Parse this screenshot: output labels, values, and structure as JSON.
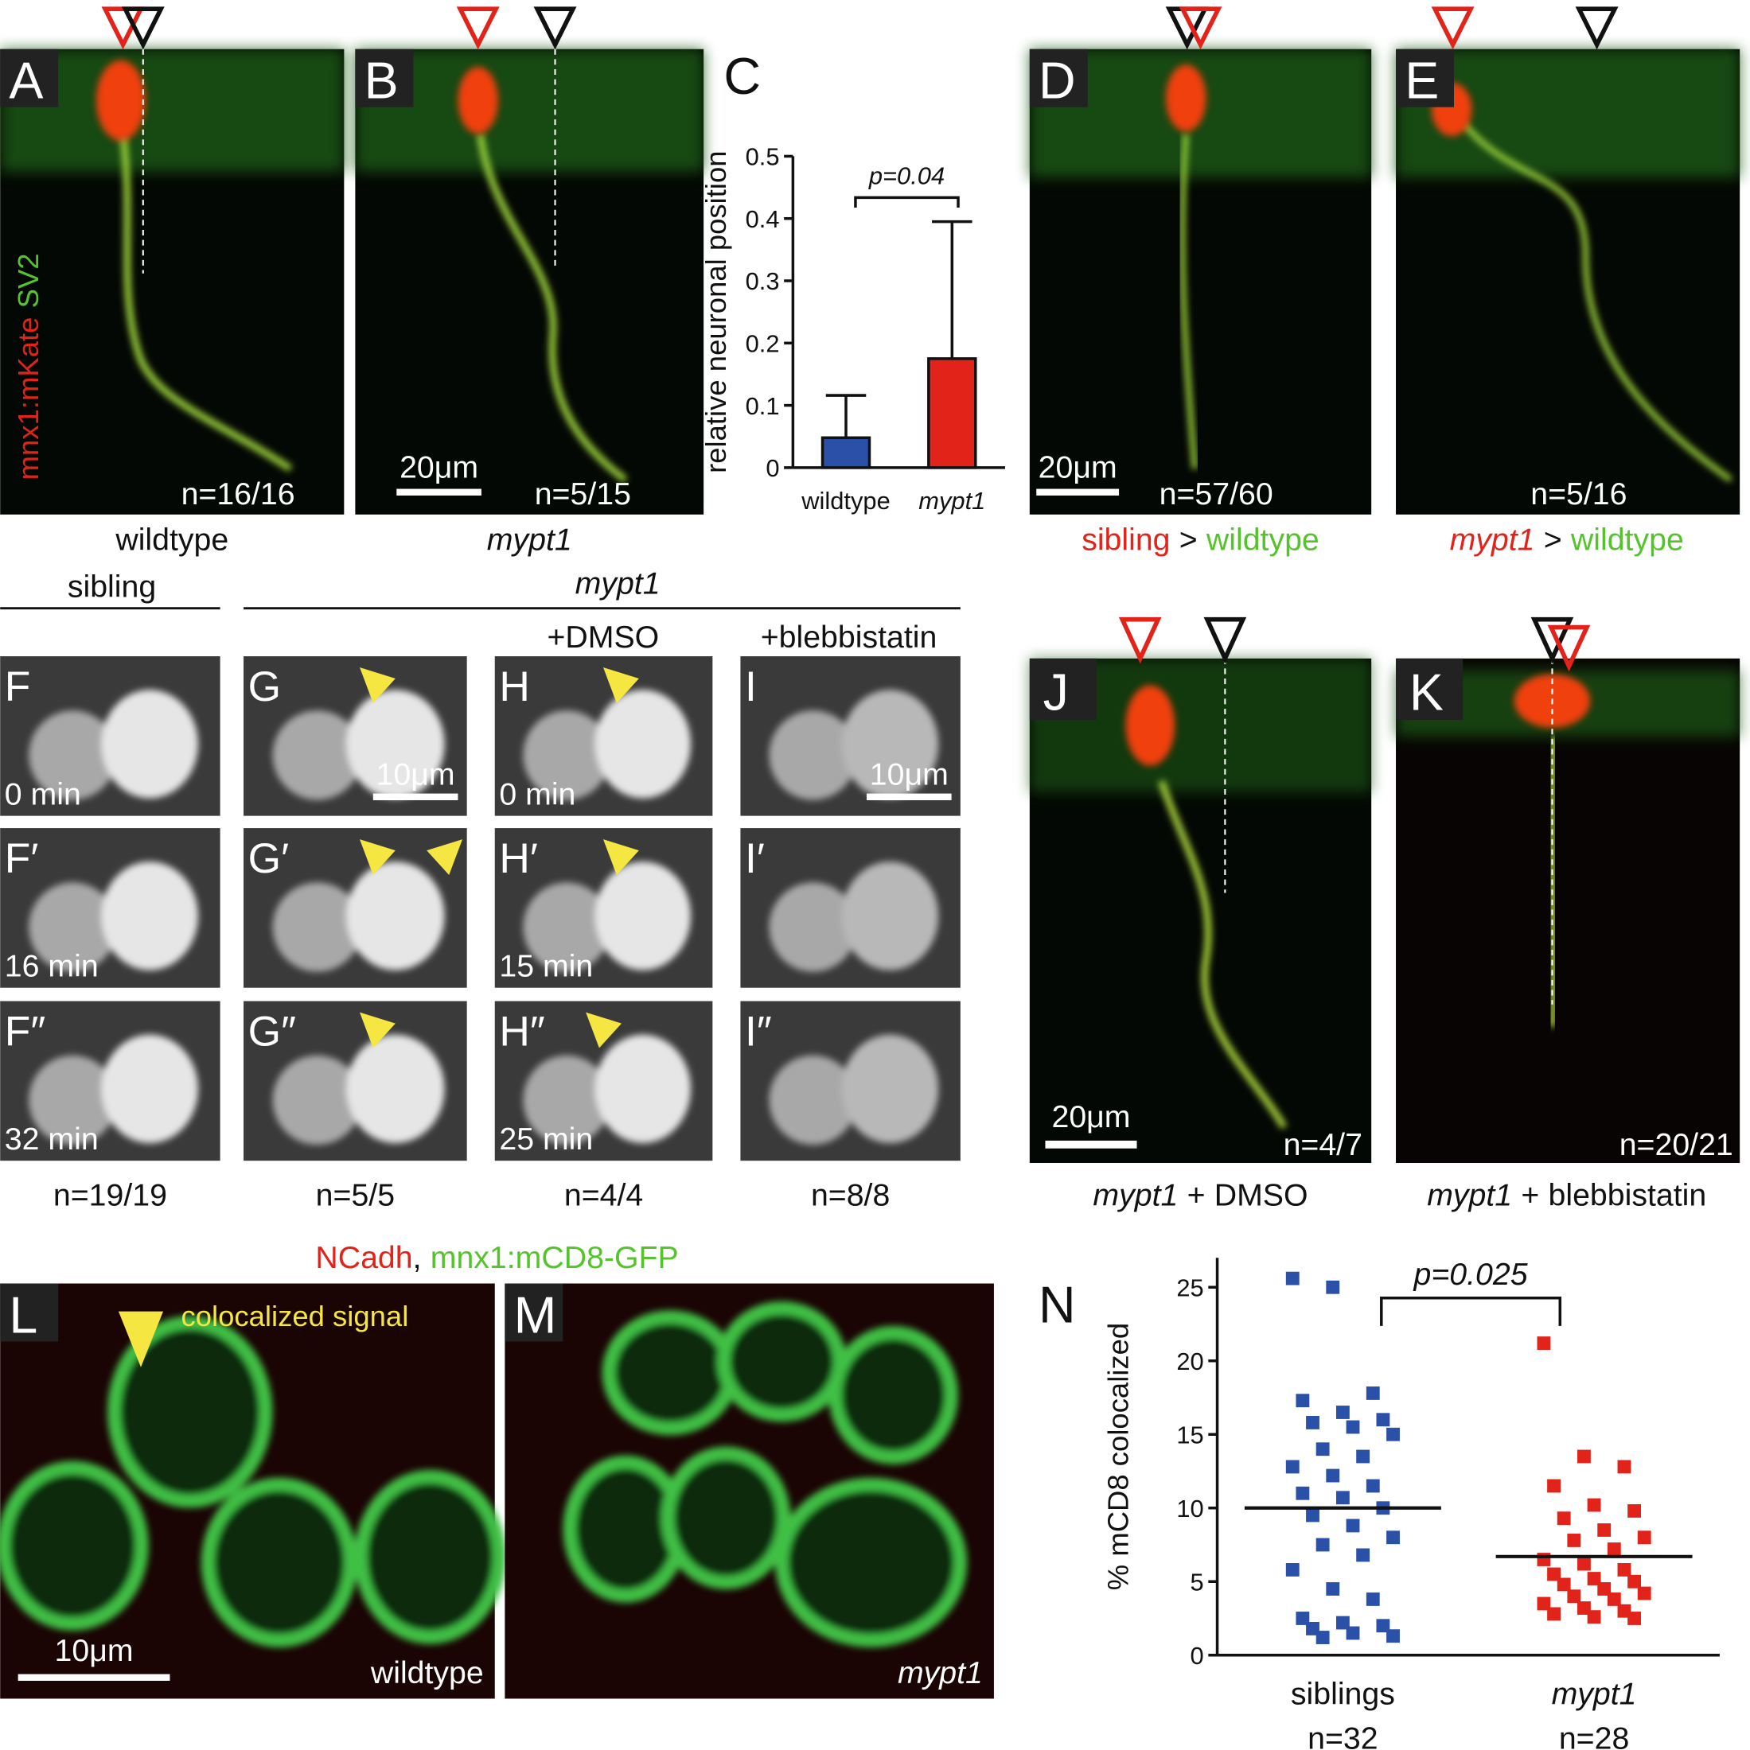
{
  "figure": {
    "A": {
      "letter": "A",
      "count": "n=16/16",
      "caption": "wildtype",
      "stain": [
        "mnx1:mKate",
        "SV2"
      ]
    },
    "B": {
      "letter": "B",
      "count": "n=5/15",
      "caption": "mypt1",
      "scale": "20μm"
    },
    "D": {
      "letter": "D",
      "count": "n=57/60",
      "caption": [
        "sibling",
        ">",
        "wildtype"
      ],
      "scale": "20μm"
    },
    "E": {
      "letter": "E",
      "count": "n=5/16",
      "caption": [
        "mypt1",
        ">",
        "wildtype"
      ]
    },
    "groups": [
      "sibling",
      "mypt1",
      "+DMSO",
      "+blebbistatin"
    ],
    "F": {
      "tiles": [
        "F",
        "F′",
        "F″"
      ],
      "times": [
        "0 min",
        "16 min",
        "32 min"
      ],
      "count": "n=19/19"
    },
    "G": {
      "tiles": [
        "G",
        "G′",
        "G″"
      ],
      "count": "n=5/5",
      "scale": "10μm"
    },
    "H": {
      "tiles": [
        "H",
        "H′",
        "H″"
      ],
      "times": [
        "0 min",
        "15 min",
        "25 min"
      ],
      "count": "n=4/4"
    },
    "I": {
      "tiles": [
        "I",
        "I′",
        "I″"
      ],
      "count": "n=8/8",
      "scale": "10μm"
    },
    "J": {
      "letter": "J",
      "count": "n=4/7",
      "caption": [
        "mypt1",
        "+",
        "DMSO"
      ],
      "scale": "20μm"
    },
    "K": {
      "letter": "K",
      "count": "n=20/21",
      "caption": [
        "mypt1",
        "+",
        "blebbistatin"
      ]
    },
    "LM": {
      "header": [
        "NCadh",
        ",",
        "mnx1:mCD8-GFP"
      ]
    },
    "L": {
      "letter": "L",
      "annotation": "colocalized signal",
      "caption": "wildtype",
      "scale": "10μm"
    },
    "M": {
      "letter": "M",
      "caption": "mypt1"
    }
  },
  "chart_data": [
    {
      "type": "bar",
      "label": "C",
      "ylabel": "relative neuronal position",
      "annotation": "p=0.04",
      "categories": [
        "wildtype",
        "mypt1"
      ],
      "values": [
        0.048,
        0.175
      ],
      "errors": [
        0.068,
        0.22
      ],
      "colors": [
        "#2b50a8",
        "#e2231a"
      ],
      "ylim": [
        0,
        0.5
      ],
      "yticks": [
        0,
        0.1,
        0.2,
        0.3,
        0.4,
        0.5
      ]
    },
    {
      "type": "strip",
      "label": "N",
      "ylabel": "% mCD8 colocalized",
      "annotation": "p=0.025",
      "categories": [
        "siblings",
        "mypt1"
      ],
      "category_counts": [
        "n=32",
        "n=28"
      ],
      "values": [
        [
          25.6,
          25,
          17.8,
          17.3,
          16.5,
          16,
          15.8,
          15.5,
          15,
          14,
          13.5,
          12.8,
          12.2,
          11.5,
          11,
          10.7,
          10,
          9.5,
          8.8,
          8,
          7.5,
          6.8,
          5.8,
          4.5,
          3.8,
          2.5,
          2.2,
          2,
          1.8,
          1.5,
          1.3,
          1.2
        ],
        [
          21.2,
          13.5,
          12.8,
          11.5,
          10.2,
          9.8,
          9.3,
          8.5,
          8,
          7.8,
          7.2,
          6.5,
          6.2,
          5.8,
          5.5,
          5.2,
          5,
          4.8,
          4.5,
          4.2,
          4,
          3.8,
          3.5,
          3.2,
          3,
          2.8,
          2.6,
          2.5
        ]
      ],
      "means": [
        10,
        6.7
      ],
      "colors": [
        "#2b50a8",
        "#e2231a"
      ],
      "ylim": [
        0,
        27
      ],
      "yticks": [
        0,
        5,
        10,
        15,
        20,
        25
      ]
    }
  ]
}
